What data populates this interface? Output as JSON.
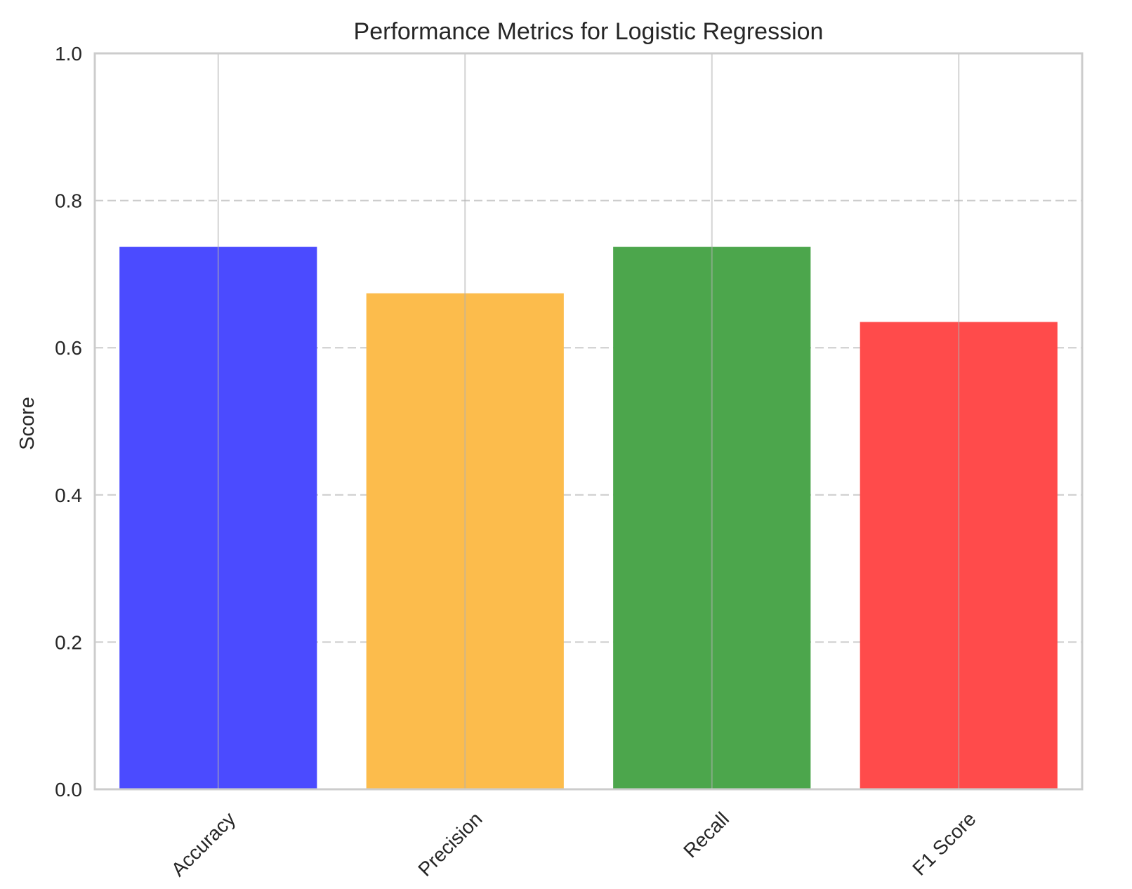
{
  "chart_data": {
    "type": "bar",
    "title": "Performance Metrics for Logistic Regression",
    "xlabel": "",
    "ylabel": "Score",
    "categories": [
      "Accuracy",
      "Precision",
      "Recall",
      "F1 Score"
    ],
    "values": [
      0.737,
      0.674,
      0.737,
      0.635
    ],
    "colors": [
      "#4b4bff",
      "#fcbc4c",
      "#4ca64c",
      "#ff4b4b"
    ],
    "ylim": [
      0,
      1.0
    ],
    "yticks": [
      0.0,
      0.2,
      0.4,
      0.6,
      0.8,
      1.0
    ],
    "ytick_labels": [
      "0.0",
      "0.2",
      "0.4",
      "0.6",
      "0.8",
      "1.0"
    ],
    "grid": {
      "horizontal": "dashed",
      "vertical": "solid"
    },
    "xtick_rotation": -45,
    "legend": "none"
  }
}
